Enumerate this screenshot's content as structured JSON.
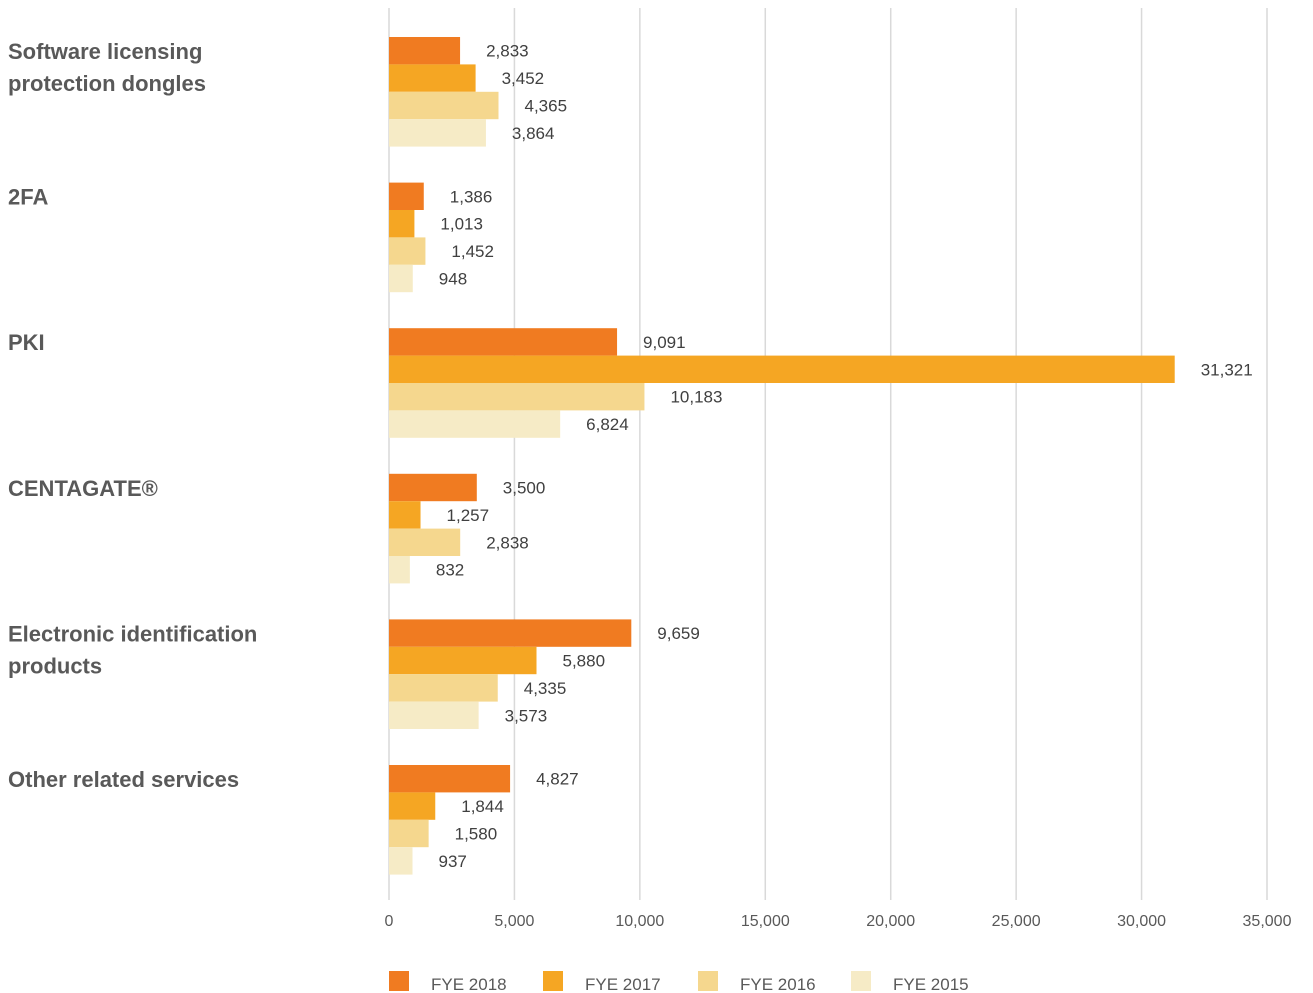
{
  "chart_data": {
    "type": "bar",
    "orientation": "horizontal",
    "categories": [
      [
        "Software licensing",
        "protection dongles"
      ],
      [
        "2FA"
      ],
      [
        "PKI"
      ],
      [
        "CENTAGATE®"
      ],
      [
        "Electronic identification",
        "products"
      ],
      [
        "Other related services"
      ]
    ],
    "series": [
      {
        "name": "FYE 2018",
        "color": "#F07B21",
        "values": [
          2833,
          1386,
          9091,
          3500,
          9659,
          4827
        ],
        "labels": [
          "2,833",
          "1,386",
          "9,091",
          "3,500",
          "9,659",
          "4,827"
        ]
      },
      {
        "name": "FYE 2017",
        "color": "#F5A623",
        "values": [
          3452,
          1013,
          31321,
          1257,
          5880,
          1844
        ],
        "labels": [
          "3,452",
          "1,013",
          "31,321",
          "1,257",
          "5,880",
          "1,844"
        ]
      },
      {
        "name": "FYE 2016",
        "color": "#F5D78E",
        "values": [
          4365,
          1452,
          10183,
          2838,
          4335,
          1580
        ],
        "labels": [
          "4,365",
          "1,452",
          "10,183",
          "2,838",
          "4,335",
          "1,580"
        ]
      },
      {
        "name": "FYE 2015",
        "color": "#F6EBC6",
        "values": [
          3864,
          948,
          6824,
          832,
          3573,
          937
        ],
        "labels": [
          "3,864",
          "948",
          "6,824",
          "832",
          "3,573",
          "937"
        ]
      }
    ],
    "xlim": [
      0,
      35000
    ],
    "ticks": [
      0,
      5000,
      10000,
      15000,
      20000,
      25000,
      30000,
      35000
    ],
    "tick_labels": [
      "0",
      "5,000",
      "10,000",
      "15,000",
      "20,000",
      "25,000",
      "30,000",
      "35,000"
    ],
    "grid": true,
    "legend_position": "bottom"
  }
}
